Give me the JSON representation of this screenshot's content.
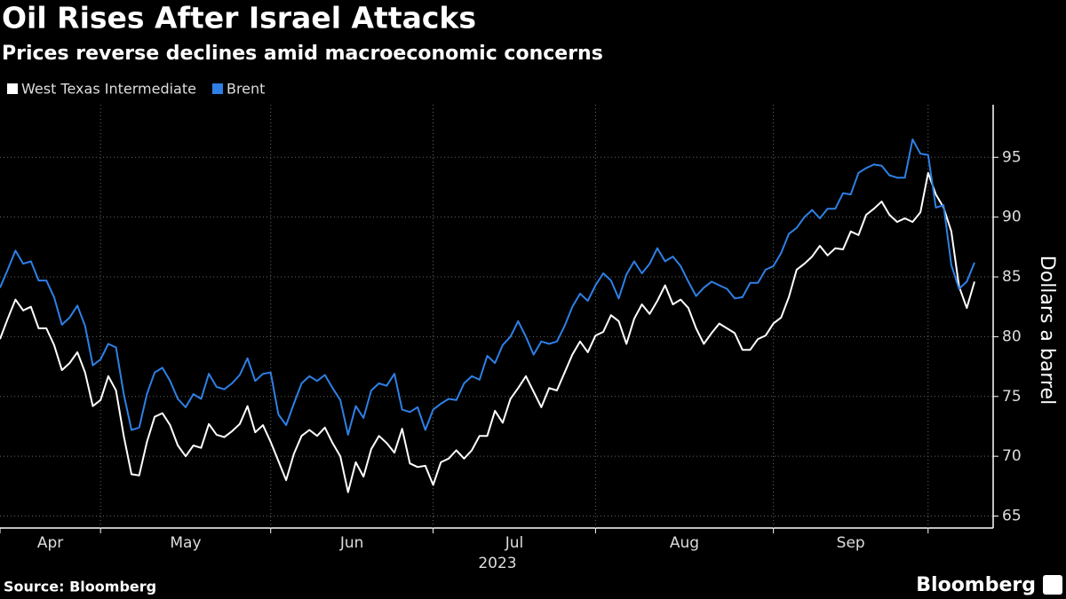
{
  "chart_data": {
    "type": "line",
    "title": "Oil Rises After Israel Attacks",
    "subtitle": "Prices reverse declines amid macroeconomic concerns",
    "y_label": "Dollars a barrel",
    "x_label": "2023",
    "source": "Source: Bloomberg",
    "brand": "Bloomberg",
    "ylim": [
      64,
      99.4
    ],
    "yticks": [
      65,
      70,
      75,
      80,
      85,
      90,
      95
    ],
    "xticks": [
      {
        "value": 0,
        "label": "Apr"
      },
      {
        "value": 13,
        "label": "May"
      },
      {
        "value": 35,
        "label": "Jun"
      },
      {
        "value": 56,
        "label": "Jul"
      },
      {
        "value": 77,
        "label": "Aug"
      },
      {
        "value": 100,
        "label": "Sep"
      }
    ],
    "xgrid": [
      120
    ],
    "grid": true,
    "series": [
      {
        "name": "West Texas Intermediate",
        "color": "#ffffff",
        "values": [
          79.8,
          81.5,
          83.1,
          82.2,
          82.5,
          80.7,
          80.7,
          79.3,
          77.2,
          77.8,
          78.7,
          77.0,
          74.2,
          74.7,
          76.7,
          75.5,
          71.7,
          68.5,
          68.4,
          71.2,
          73.3,
          73.6,
          72.6,
          70.9,
          70.0,
          70.9,
          70.7,
          72.7,
          71.8,
          71.6,
          72.1,
          72.7,
          74.2,
          72.0,
          72.6,
          71.2,
          69.6,
          68.0,
          70.2,
          71.7,
          72.2,
          71.7,
          72.4,
          71.1,
          70.0,
          67.0,
          69.5,
          68.3,
          70.6,
          71.7,
          71.1,
          70.3,
          72.3,
          69.4,
          69.1,
          69.2,
          67.6,
          69.5,
          69.8,
          70.5,
          69.8,
          70.5,
          71.7,
          71.7,
          73.8,
          72.8,
          74.8,
          75.7,
          76.7,
          75.4,
          74.1,
          75.7,
          75.5,
          77.0,
          78.5,
          79.6,
          78.7,
          80.1,
          80.4,
          81.8,
          81.3,
          79.4,
          81.5,
          82.7,
          81.9,
          83.0,
          84.3,
          82.7,
          83.1,
          82.4,
          80.7,
          79.4,
          80.3,
          81.1,
          80.7,
          80.3,
          78.9,
          78.9,
          79.8,
          80.1,
          81.1,
          81.6,
          83.3,
          85.6,
          86.1,
          86.7,
          87.6,
          86.8,
          87.4,
          87.3,
          88.8,
          88.5,
          90.2,
          90.7,
          91.3,
          90.2,
          89.6,
          89.9,
          89.6,
          90.4,
          93.7,
          91.9,
          90.8,
          88.8,
          84.2,
          82.4,
          84.6
        ]
      },
      {
        "name": "Brent",
        "color": "#2e80e6",
        "values": [
          84.1,
          85.6,
          87.2,
          86.1,
          86.3,
          84.7,
          84.7,
          83.3,
          81.0,
          81.6,
          82.6,
          80.9,
          77.6,
          78.1,
          79.4,
          79.1,
          75.2,
          72.2,
          72.4,
          75.2,
          77.0,
          77.4,
          76.3,
          74.8,
          74.1,
          75.2,
          74.8,
          76.9,
          75.8,
          75.6,
          76.1,
          76.8,
          78.2,
          76.3,
          76.9,
          77.0,
          73.5,
          72.6,
          74.4,
          76.1,
          76.7,
          76.3,
          76.8,
          75.7,
          74.7,
          71.8,
          74.2,
          73.2,
          75.5,
          76.1,
          75.9,
          76.9,
          73.9,
          73.7,
          74.1,
          72.2,
          73.9,
          74.4,
          74.8,
          74.7,
          76.1,
          76.7,
          76.4,
          78.4,
          77.8,
          79.3,
          80.0,
          81.3,
          80.0,
          78.5,
          79.6,
          79.4,
          79.6,
          80.9,
          82.5,
          83.6,
          83.0,
          84.3,
          85.3,
          84.7,
          83.2,
          85.2,
          86.3,
          85.3,
          86.1,
          87.4,
          86.3,
          86.7,
          85.9,
          84.6,
          83.4,
          84.1,
          84.6,
          84.3,
          84.0,
          83.2,
          83.3,
          84.5,
          84.5,
          85.6,
          85.9,
          87.0,
          88.6,
          89.1,
          90.0,
          90.6,
          89.9,
          90.7,
          90.7,
          92.0,
          91.9,
          93.7,
          94.1,
          94.4,
          94.3,
          93.5,
          93.3,
          93.3,
          96.5,
          95.3,
          95.2,
          90.8,
          91.0,
          86.0,
          84.0,
          84.6,
          86.2
        ]
      }
    ]
  }
}
